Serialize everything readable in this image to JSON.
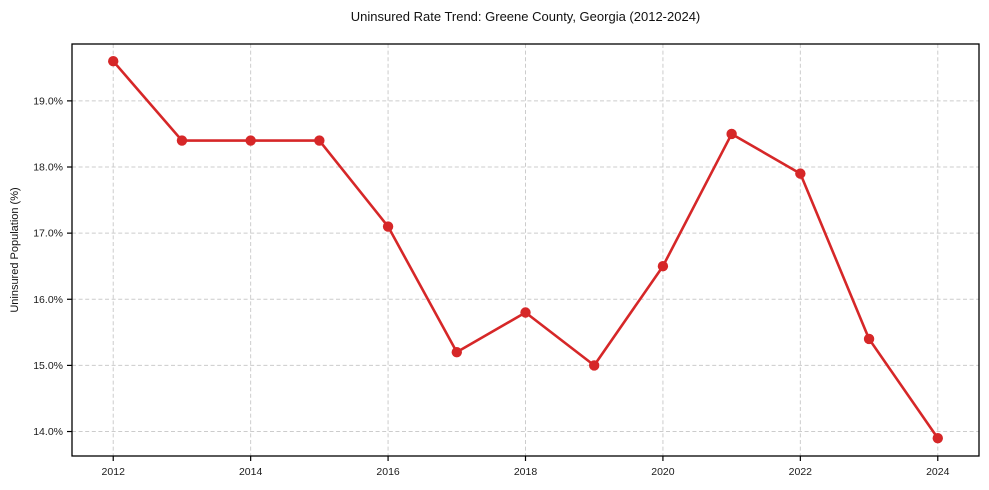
{
  "chart_data": {
    "type": "line",
    "title": "Uninsured Rate Trend: Greene County, Georgia (2012-2024)",
    "xlabel": "",
    "ylabel": "Uninsured Population (%)",
    "x": [
      2012,
      2013,
      2014,
      2015,
      2016,
      2017,
      2018,
      2019,
      2020,
      2021,
      2022,
      2023,
      2024
    ],
    "series": [
      {
        "name": "Uninsured Population (%)",
        "values": [
          19.6,
          18.4,
          18.4,
          18.4,
          17.1,
          15.2,
          15.8,
          15.0,
          16.5,
          18.5,
          17.9,
          15.4,
          13.9
        ]
      }
    ],
    "xlim": [
      2011.4,
      2024.6
    ],
    "ylim": [
      13.63,
      19.86
    ],
    "x_ticks": [
      2012,
      2014,
      2016,
      2018,
      2020,
      2022,
      2024
    ],
    "x_tick_labels": [
      "2012",
      "2014",
      "2016",
      "2018",
      "2020",
      "2022",
      "2024"
    ],
    "y_ticks": [
      14.0,
      15.0,
      16.0,
      17.0,
      18.0,
      19.0
    ],
    "y_tick_labels": [
      "14.0%",
      "15.0%",
      "16.0%",
      "17.0%",
      "18.0%",
      "19.0%"
    ],
    "grid": true,
    "grid_style": "dashed",
    "legend_position": "none",
    "style": {
      "line_color": "#d62728",
      "marker": "circle",
      "marker_color": "#d62728",
      "grid_color": "#cccccc",
      "axis_color": "#000000",
      "tick_text_color": "#1a1a1a",
      "background": "#ffffff"
    }
  }
}
